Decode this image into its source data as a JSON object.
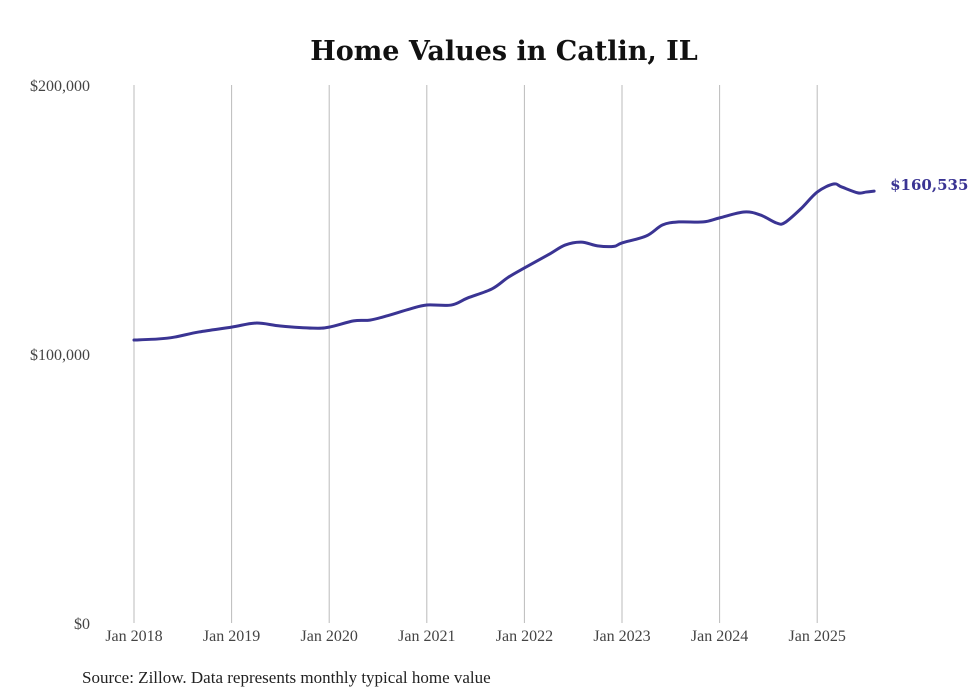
{
  "chart_data": {
    "type": "line",
    "title": "Home Values in Catlin, IL",
    "xlabel": "",
    "ylabel": "",
    "ylim": [
      0,
      200000
    ],
    "yticks": [
      0,
      100000,
      200000
    ],
    "ytick_labels": [
      "$0",
      "$100,000",
      "$200,000"
    ],
    "xticks": [
      "2018-01",
      "2019-01",
      "2020-01",
      "2021-01",
      "2022-01",
      "2023-01",
      "2024-01",
      "2025-01"
    ],
    "xtick_labels": [
      "Jan 2018",
      "Jan 2019",
      "Jan 2020",
      "Jan 2021",
      "Jan 2022",
      "Jan 2023",
      "Jan 2024",
      "Jan 2025"
    ],
    "grid": "vertical",
    "line_color": "#3a3493",
    "series": [
      {
        "name": "Typical home value",
        "points": [
          [
            "2018-01",
            105200
          ],
          [
            "2018-04",
            105600
          ],
          [
            "2018-06",
            106300
          ],
          [
            "2018-09",
            108200
          ],
          [
            "2019-01",
            110000
          ],
          [
            "2019-04",
            111500
          ],
          [
            "2019-07",
            110400
          ],
          [
            "2019-11",
            109600
          ],
          [
            "2020-01",
            110000
          ],
          [
            "2020-04",
            112300
          ],
          [
            "2020-06",
            112600
          ],
          [
            "2020-08",
            114100
          ],
          [
            "2020-11",
            116800
          ],
          [
            "2021-01",
            118200
          ],
          [
            "2021-04",
            118200
          ],
          [
            "2021-06",
            120800
          ],
          [
            "2021-09",
            124200
          ],
          [
            "2021-11",
            128500
          ],
          [
            "2022-01",
            132000
          ],
          [
            "2022-04",
            137000
          ],
          [
            "2022-06",
            140500
          ],
          [
            "2022-08",
            141600
          ],
          [
            "2022-10",
            140200
          ],
          [
            "2022-12",
            140000
          ],
          [
            "2023-01",
            141300
          ],
          [
            "2023-04",
            143900
          ],
          [
            "2023-06",
            148000
          ],
          [
            "2023-08",
            149100
          ],
          [
            "2023-11",
            149100
          ],
          [
            "2024-01",
            150600
          ],
          [
            "2024-04",
            152800
          ],
          [
            "2024-06",
            151700
          ],
          [
            "2024-08",
            148700
          ],
          [
            "2024-09",
            148800
          ],
          [
            "2024-11",
            154000
          ],
          [
            "2025-01",
            160200
          ],
          [
            "2025-03",
            163200
          ],
          [
            "2025-04",
            162100
          ],
          [
            "2025-06",
            159900
          ],
          [
            "2025-07",
            160200
          ],
          [
            "2025-08",
            160535
          ]
        ]
      }
    ],
    "end_label": "$160,535"
  },
  "source": "Source: Zillow. Data represents monthly typical home value"
}
